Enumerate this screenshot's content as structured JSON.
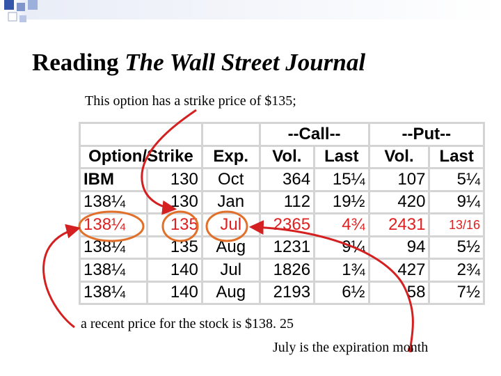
{
  "slide": {
    "title_prefix": "Reading ",
    "title_italic": "The Wall Street Journal",
    "note_strike": "This option has a strike price of $135;",
    "note_price": "a recent price for the stock is $138. 25",
    "note_month": "July is the expiration month"
  },
  "table": {
    "group_call": "--Call--",
    "group_put": "--Put--",
    "headers": [
      "Option/Strike",
      "Exp.",
      "Vol.",
      "Last",
      "Vol.",
      "Last"
    ],
    "rows": [
      {
        "sym": "IBM",
        "strike": "130",
        "exp": "Oct",
        "call_vol": "364",
        "call_last": "15¼",
        "put_vol": "107",
        "put_last": "5¼"
      },
      {
        "sym": "138¼",
        "strike": "130",
        "exp": "Jan",
        "call_vol": "112",
        "call_last": "19½",
        "put_vol": "420",
        "put_last": "9¼"
      },
      {
        "sym": "138¼",
        "strike": "135",
        "exp": "Jul",
        "call_vol": "2365",
        "call_last": "4¾",
        "put_vol": "2431",
        "put_last": "13/16"
      },
      {
        "sym": "138¼",
        "strike": "135",
        "exp": "Aug",
        "call_vol": "1231",
        "call_last": "9¼",
        "put_vol": "94",
        "put_last": "5½"
      },
      {
        "sym": "138¼",
        "strike": "140",
        "exp": "Jul",
        "call_vol": "1826",
        "call_last": "1¾",
        "put_vol": "427",
        "put_last": "2¾"
      },
      {
        "sym": "138¼",
        "strike": "140",
        "exp": "Aug",
        "call_vol": "2193",
        "call_last": "6½",
        "put_vol": "58",
        "put_last": "7½"
      }
    ]
  },
  "colors": {
    "highlight": "#e02020",
    "circle": "#e0702a",
    "arrow": "#d42020",
    "grid": "#d4d4d4"
  }
}
